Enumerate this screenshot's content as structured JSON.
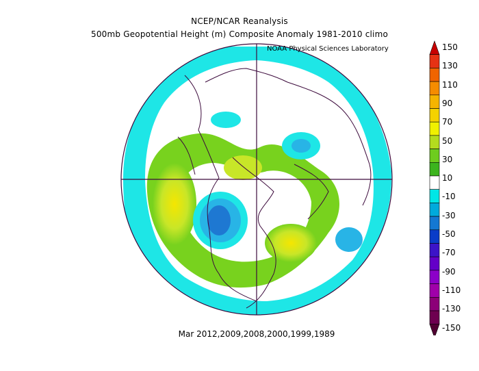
{
  "header": {
    "line1": "NCEP/NCAR Reanalysis",
    "line2": "500mb Geopotential Height (m) Composite Anomaly 1981-2010 climo",
    "credit": "NOAA Physical Sciences Laboratory"
  },
  "footer": {
    "text": "Mar 2012,2009,2008,2000,1999,1989"
  },
  "colorbar": {
    "labels": [
      "150",
      "130",
      "110",
      "90",
      "70",
      "50",
      "30",
      "10",
      "-10",
      "-30",
      "-50",
      "-70",
      "-90",
      "-110",
      "-130",
      "-150"
    ],
    "colors": [
      "#c80000",
      "#e63214",
      "#f06400",
      "#f58c00",
      "#f5b400",
      "#f5d200",
      "#f0f000",
      "#b4dc1e",
      "#6ecc1e",
      "#3cb41e",
      "#ffffff",
      "#00e6e6",
      "#00aadc",
      "#1478d2",
      "#0a3cc8",
      "#3c14c8",
      "#6400c8",
      "#8c00c8",
      "#a000aa",
      "#8c0078",
      "#6e0050",
      "#500032"
    ]
  },
  "map": {
    "projection": "polar-stereographic",
    "colors": {
      "land_lines": "#3c0a3c",
      "yellow": "#f5e600",
      "yellow_green": "#c8e628",
      "green": "#78d21e",
      "dark_green": "#3cb41e",
      "white": "#ffffff",
      "cyan": "#1ee6e6",
      "light_blue": "#28b4e6",
      "blue": "#1e78d2",
      "dark_blue": "#1450c8"
    }
  }
}
